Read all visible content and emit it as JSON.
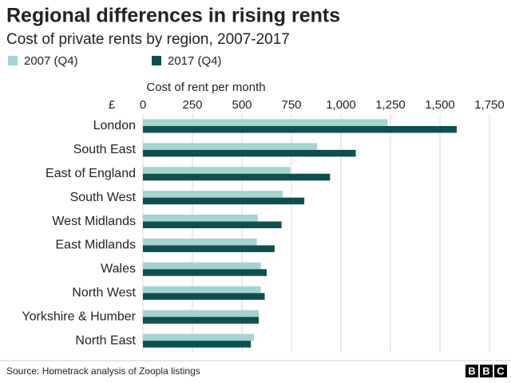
{
  "chart_data": {
    "type": "bar",
    "orientation": "horizontal",
    "title": "Regional differences in rising rents",
    "subtitle": "Cost of private rents by region, 2007-2017",
    "x_label": "Cost of rent per month",
    "x_unit": "£",
    "categories": [
      "London",
      "South East",
      "East of England",
      "South West",
      "West Midlands",
      "East Midlands",
      "Wales",
      "North West",
      "Yorkshire & Humber",
      "North East"
    ],
    "series": [
      {
        "name": "2007 (Q4)",
        "color": "#a3d4cf",
        "values": [
          1235,
          880,
          745,
          705,
          580,
          575,
          595,
          595,
          585,
          560
        ]
      },
      {
        "name": "2017 (Q4)",
        "color": "#0e4f4f",
        "values": [
          1585,
          1075,
          945,
          815,
          700,
          665,
          625,
          615,
          585,
          545
        ]
      }
    ],
    "xlim": [
      0,
      1750
    ],
    "xticks": [
      0,
      250,
      500,
      750,
      {
        "value": 1000,
        "label": "1,000"
      },
      {
        "value": 1250,
        "label": "1,250"
      },
      {
        "value": 1500,
        "label": "1,500"
      },
      {
        "value": 1750,
        "label": "1,750"
      }
    ],
    "grid": true,
    "source": "Source: Hometrack analysis of Zoopla listings",
    "logo": [
      "B",
      "B",
      "C"
    ]
  }
}
